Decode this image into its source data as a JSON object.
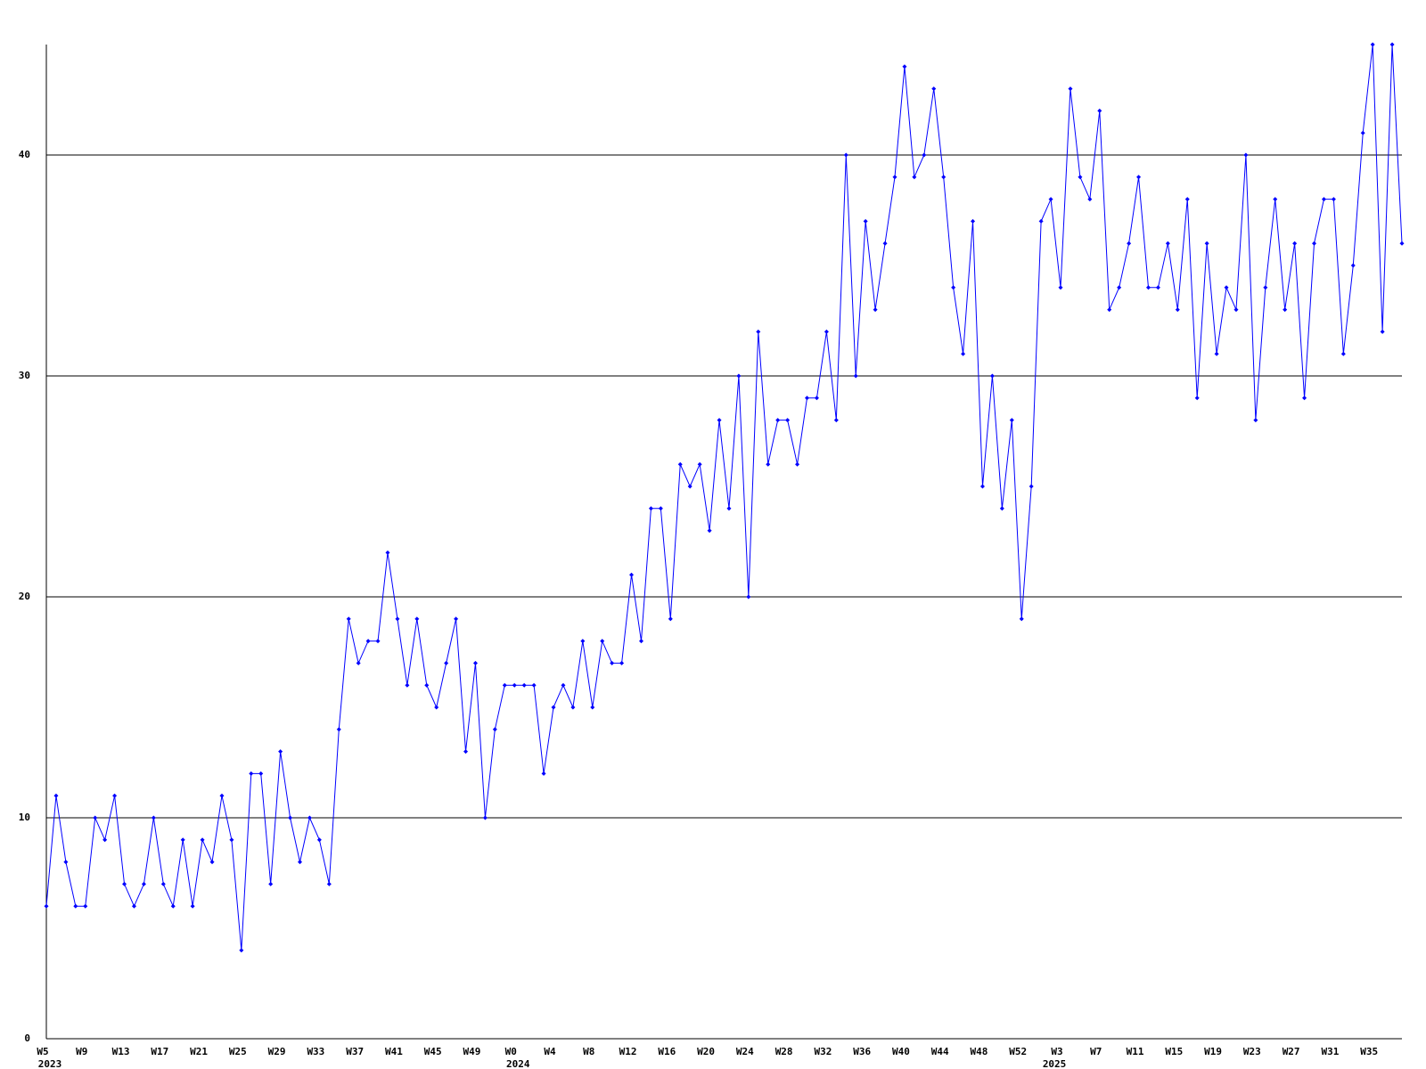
{
  "chart_data": {
    "type": "line",
    "color": "#0000ff",
    "grid": true,
    "ylim": [
      0,
      45
    ],
    "yticks": [
      0,
      10,
      20,
      30,
      40
    ],
    "categories": [
      "W5",
      null,
      null,
      null,
      "W9",
      null,
      null,
      null,
      "W13",
      null,
      null,
      null,
      "W17",
      null,
      null,
      null,
      "W21",
      null,
      null,
      null,
      "W25",
      null,
      null,
      null,
      "W29",
      null,
      null,
      null,
      "W33",
      null,
      null,
      null,
      "W37",
      null,
      null,
      null,
      "W41",
      null,
      null,
      null,
      "W45",
      null,
      null,
      null,
      "W49",
      null,
      null,
      null,
      "W0",
      null,
      null,
      null,
      "W4",
      null,
      null,
      null,
      "W8",
      null,
      null,
      null,
      "W12",
      null,
      null,
      null,
      "W16",
      null,
      null,
      null,
      "W20",
      null,
      null,
      null,
      "W24",
      null,
      null,
      null,
      "W28",
      null,
      null,
      null,
      "W32",
      null,
      null,
      null,
      "W36",
      null,
      null,
      null,
      "W40",
      null,
      null,
      null,
      "W44",
      null,
      null,
      null,
      "W48",
      null,
      null,
      null,
      "W52",
      null,
      null,
      null,
      "W3",
      null,
      null,
      null,
      "W7",
      null,
      null,
      null,
      "W11",
      null,
      null,
      null,
      "W15",
      null,
      null,
      null,
      "W19",
      null,
      null,
      null,
      "W23",
      null,
      null,
      null,
      "W27",
      null,
      null,
      null,
      "W31",
      null,
      null,
      null,
      "W35",
      null,
      null,
      null
    ],
    "year_labels": [
      "2023",
      null,
      null,
      null,
      null,
      null,
      null,
      null,
      null,
      null,
      null,
      null,
      null,
      null,
      null,
      null,
      null,
      null,
      null,
      null,
      null,
      null,
      null,
      null,
      null,
      null,
      null,
      null,
      null,
      null,
      null,
      null,
      null,
      null,
      null,
      null,
      null,
      null,
      null,
      null,
      null,
      null,
      null,
      null,
      null,
      null,
      null,
      null,
      "2024",
      null,
      null,
      null,
      null,
      null,
      null,
      null,
      null,
      null,
      null,
      null,
      null,
      null,
      null,
      null,
      null,
      null,
      null,
      null,
      null,
      null,
      null,
      null,
      null,
      null,
      null,
      null,
      null,
      null,
      null,
      null,
      null,
      null,
      null,
      null,
      null,
      null,
      null,
      null,
      null,
      null,
      null,
      null,
      null,
      null,
      null,
      null,
      null,
      null,
      null,
      null,
      null,
      null,
      null,
      "2025",
      null,
      null,
      null,
      null,
      null,
      null,
      null,
      null,
      null,
      null,
      null,
      null,
      null,
      null,
      null,
      null,
      null,
      null,
      null,
      null,
      null,
      null,
      null,
      null,
      null,
      null,
      null,
      null,
      null,
      null,
      null,
      null,
      null,
      null,
      null,
      null,
      null,
      null
    ],
    "values": [
      6,
      11,
      8,
      6,
      6,
      10,
      9,
      11,
      7,
      6,
      7,
      10,
      7,
      6,
      9,
      6,
      9,
      8,
      11,
      9,
      4,
      12,
      12,
      7,
      13,
      10,
      8,
      10,
      9,
      7,
      14,
      19,
      17,
      18,
      18,
      22,
      19,
      16,
      19,
      16,
      15,
      17,
      19,
      13,
      17,
      10,
      14,
      16,
      16,
      16,
      16,
      12,
      15,
      16,
      15,
      18,
      15,
      18,
      17,
      17,
      21,
      18,
      24,
      24,
      19,
      26,
      25,
      26,
      23,
      28,
      24,
      30,
      20,
      32,
      26,
      28,
      28,
      26,
      29,
      29,
      32,
      28,
      40,
      30,
      37,
      33,
      36,
      39,
      44,
      39,
      40,
      43,
      39,
      34,
      31,
      37,
      25,
      30,
      24,
      28,
      19,
      25,
      37,
      38,
      34,
      43,
      39,
      38,
      42,
      33,
      34,
      36,
      39,
      34,
      34,
      36,
      33,
      38,
      29,
      36,
      31,
      34,
      33,
      40,
      28,
      34,
      38,
      33,
      36,
      29,
      36,
      38,
      38,
      31,
      35,
      41,
      45,
      32,
      45,
      36
    ]
  }
}
